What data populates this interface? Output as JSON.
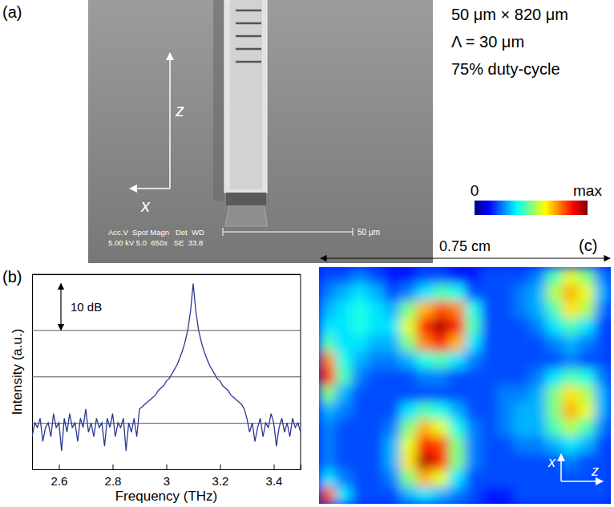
{
  "panel_a": {
    "label": "(a)",
    "specs": [
      "50 μm × 820 μm",
      "Λ = 30 μm",
      "75% duty-cycle"
    ],
    "axes": {
      "z": "z",
      "x": "x"
    },
    "sem_info": [
      "Acc.V  Spot Magn   Det  WD",
      "5.00 kV 5.0  650x   SE  33.8"
    ],
    "scale_bar": "50 μm"
  },
  "panel_b": {
    "label": "(b)"
  },
  "chart_data": {
    "type": "line",
    "x_label": "Frequency (THz)",
    "y_label": "Intensity (a.u.)",
    "color": "#2b3990",
    "x": [
      2.5,
      2.51,
      2.52,
      2.53,
      2.54,
      2.55,
      2.56,
      2.57,
      2.58,
      2.59,
      2.6,
      2.61,
      2.62,
      2.63,
      2.64,
      2.65,
      2.66,
      2.67,
      2.68,
      2.69,
      2.7,
      2.71,
      2.72,
      2.73,
      2.74,
      2.75,
      2.76,
      2.77,
      2.78,
      2.79,
      2.8,
      2.81,
      2.82,
      2.83,
      2.84,
      2.85,
      2.86,
      2.87,
      2.88,
      2.89,
      2.9,
      2.91,
      2.92,
      2.93,
      2.94,
      2.95,
      2.96,
      2.97,
      2.98,
      2.99,
      3,
      3.01,
      3.02,
      3.03,
      3.04,
      3.05,
      3.06,
      3.07,
      3.08,
      3.09,
      3.1,
      3.11,
      3.12,
      3.13,
      3.14,
      3.15,
      3.16,
      3.17,
      3.18,
      3.19,
      3.2,
      3.21,
      3.22,
      3.23,
      3.24,
      3.25,
      3.26,
      3.27,
      3.28,
      3.29,
      3.3,
      3.31,
      3.32,
      3.33,
      3.34,
      3.35,
      3.36,
      3.37,
      3.38,
      3.39,
      3.4,
      3.41,
      3.42,
      3.43,
      3.44,
      3.45,
      3.46,
      3.47,
      3.48,
      3.49,
      3.5
    ],
    "values": [
      -33,
      -30,
      -31,
      -29,
      -34,
      -31,
      -30,
      -33,
      -28,
      -31,
      -30,
      -36,
      -29,
      -32,
      -28,
      -31,
      -30,
      -34,
      -29,
      -31,
      -27,
      -32,
      -30,
      -33,
      -29,
      -31,
      -30,
      -35,
      -29,
      -31,
      -28,
      -33,
      -30,
      -31,
      -29,
      -36,
      -30,
      -32,
      -29,
      -33,
      -27,
      -26.5,
      -26,
      -25.5,
      -25,
      -24.5,
      -24,
      -23,
      -22.5,
      -22,
      -21,
      -20.5,
      -19.5,
      -18.5,
      -17.5,
      -16,
      -14.5,
      -12.5,
      -10,
      -6,
      0,
      -6,
      -10,
      -12.5,
      -14.5,
      -16,
      -17.5,
      -18.5,
      -19.5,
      -20.5,
      -21,
      -22,
      -22.5,
      -23,
      -24,
      -24.5,
      -25,
      -25.5,
      -26,
      -27,
      -29,
      -32,
      -30,
      -34,
      -31,
      -29,
      -33,
      -30,
      -31,
      -28,
      -30,
      -35,
      -31,
      -29,
      -32,
      -30,
      -33,
      -29,
      -31,
      -30,
      -32
    ],
    "xlim": [
      2.5,
      3.5
    ],
    "ylim": [
      -40,
      2
    ],
    "xticks": [
      2.6,
      2.8,
      3,
      3.2,
      3.4
    ],
    "yticks": [
      -30,
      -20,
      -10
    ],
    "grid": true,
    "tick_labels": "x",
    "annotations": [
      {
        "text": "10 dB",
        "y": [
          -10,
          0
        ]
      }
    ]
  },
  "panel_c": {
    "label": "(c)",
    "width_label": "0.75 cm",
    "axes": {
      "x": "x",
      "z": "z"
    },
    "colorbar": {
      "range": [
        0,
        1
      ],
      "ticks": [
        {
          "value": 0,
          "label": "0"
        },
        {
          "value": 1,
          "label": "max"
        }
      ]
    },
    "cells": [
      [
        0.2,
        0.2,
        0.25,
        0.2,
        0.15,
        0.15,
        0.2,
        0.2,
        0.15,
        0.15,
        0.2,
        0.2,
        0.2,
        0.25,
        0.45,
        0.6,
        0.5,
        0.25
      ],
      [
        0.25,
        0.3,
        0.35,
        0.3,
        0.2,
        0.25,
        0.35,
        0.45,
        0.4,
        0.2,
        0.2,
        0.2,
        0.25,
        0.3,
        0.55,
        0.7,
        0.6,
        0.3
      ],
      [
        0.3,
        0.35,
        0.4,
        0.35,
        0.3,
        0.5,
        0.7,
        0.8,
        0.75,
        0.4,
        0.2,
        0.2,
        0.25,
        0.3,
        0.45,
        0.65,
        0.55,
        0.25
      ],
      [
        0.35,
        0.35,
        0.4,
        0.35,
        0.35,
        0.6,
        0.85,
        0.95,
        0.85,
        0.45,
        0.2,
        0.2,
        0.2,
        0.25,
        0.35,
        0.45,
        0.35,
        0.2
      ],
      [
        0.45,
        0.35,
        0.35,
        0.3,
        0.3,
        0.5,
        0.75,
        0.85,
        0.7,
        0.35,
        0.2,
        0.2,
        0.2,
        0.2,
        0.25,
        0.3,
        0.25,
        0.2
      ],
      [
        0.75,
        0.4,
        0.3,
        0.25,
        0.25,
        0.3,
        0.4,
        0.45,
        0.35,
        0.25,
        0.2,
        0.2,
        0.2,
        0.2,
        0.2,
        0.25,
        0.2,
        0.2
      ],
      [
        0.85,
        0.45,
        0.25,
        0.2,
        0.2,
        0.2,
        0.25,
        0.25,
        0.2,
        0.2,
        0.2,
        0.2,
        0.2,
        0.25,
        0.35,
        0.45,
        0.4,
        0.25
      ],
      [
        0.5,
        0.3,
        0.2,
        0.2,
        0.2,
        0.2,
        0.2,
        0.2,
        0.2,
        0.2,
        0.2,
        0.25,
        0.25,
        0.3,
        0.5,
        0.65,
        0.55,
        0.3
      ],
      [
        0.3,
        0.25,
        0.2,
        0.2,
        0.2,
        0.35,
        0.45,
        0.4,
        0.3,
        0.2,
        0.2,
        0.25,
        0.3,
        0.3,
        0.5,
        0.7,
        0.6,
        0.3
      ],
      [
        0.25,
        0.2,
        0.2,
        0.2,
        0.25,
        0.5,
        0.7,
        0.6,
        0.4,
        0.25,
        0.2,
        0.25,
        0.3,
        0.3,
        0.45,
        0.55,
        0.45,
        0.25
      ],
      [
        0.25,
        0.2,
        0.2,
        0.2,
        0.3,
        0.6,
        0.85,
        0.8,
        0.5,
        0.25,
        0.2,
        0.2,
        0.25,
        0.25,
        0.3,
        0.35,
        0.3,
        0.2
      ],
      [
        0.25,
        0.2,
        0.2,
        0.2,
        0.3,
        0.65,
        0.95,
        0.85,
        0.5,
        0.25,
        0.2,
        0.2,
        0.2,
        0.2,
        0.2,
        0.25,
        0.2,
        0.2
      ],
      [
        0.35,
        0.25,
        0.2,
        0.2,
        0.25,
        0.5,
        0.7,
        0.6,
        0.35,
        0.2,
        0.2,
        0.2,
        0.2,
        0.2,
        0.2,
        0.2,
        0.2,
        0.2
      ],
      [
        0.8,
        0.35,
        0.2,
        0.2,
        0.2,
        0.3,
        0.35,
        0.3,
        0.25,
        0.2,
        0.15,
        0.15,
        0.2,
        0.2,
        0.2,
        0.2,
        0.2,
        0.2
      ]
    ]
  }
}
